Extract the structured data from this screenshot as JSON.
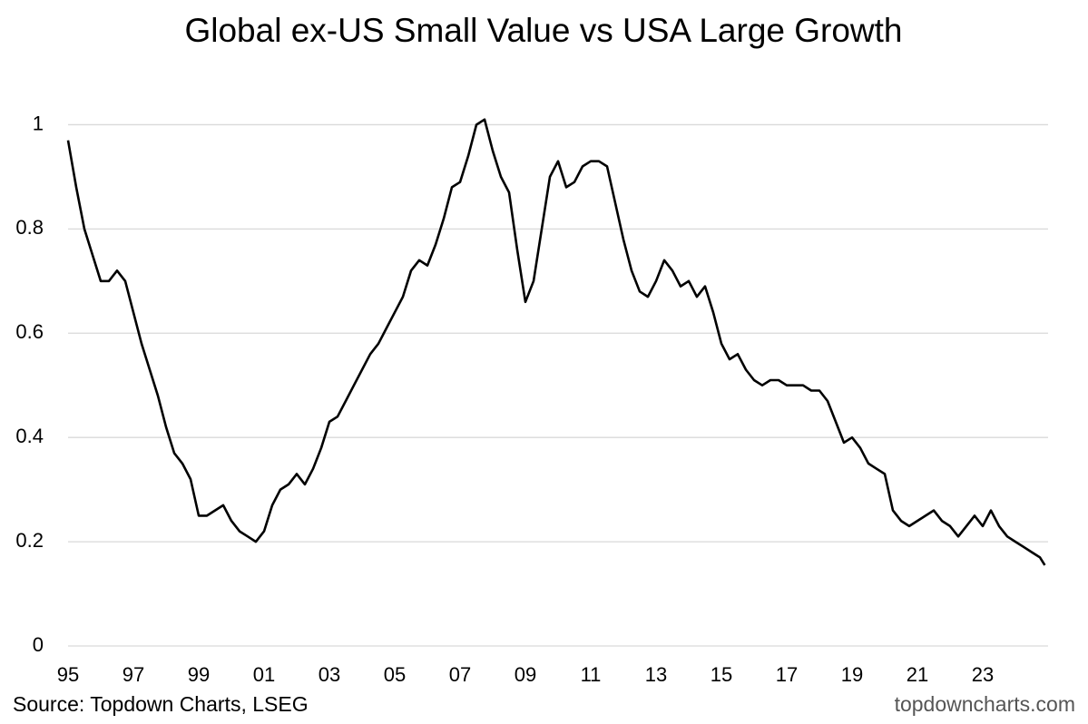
{
  "chart_data": {
    "type": "line",
    "title": "Global ex-US Small Value vs USA Large Growth",
    "annotations": {
      "source": "Source: Topdown Charts, LSEG",
      "watermark": "topdowncharts.com"
    },
    "x": [
      1995,
      1995.25,
      1995.5,
      1995.75,
      1996,
      1996.25,
      1996.5,
      1996.75,
      1997,
      1997.25,
      1997.5,
      1997.75,
      1998,
      1998.25,
      1998.5,
      1998.75,
      1999,
      1999.25,
      1999.5,
      1999.75,
      2000,
      2000.25,
      2000.5,
      2000.75,
      2001,
      2001.25,
      2001.5,
      2001.75,
      2002,
      2002.25,
      2002.5,
      2002.75,
      2003,
      2003.25,
      2003.5,
      2003.75,
      2004,
      2004.25,
      2004.5,
      2004.75,
      2005,
      2005.25,
      2005.5,
      2005.75,
      2006,
      2006.25,
      2006.5,
      2006.75,
      2007,
      2007.25,
      2007.5,
      2007.75,
      2008,
      2008.25,
      2008.5,
      2008.75,
      2009,
      2009.25,
      2009.5,
      2009.75,
      2010,
      2010.25,
      2010.5,
      2010.75,
      2011,
      2011.25,
      2011.5,
      2011.75,
      2012,
      2012.25,
      2012.5,
      2012.75,
      2013,
      2013.25,
      2013.5,
      2013.75,
      2014,
      2014.25,
      2014.5,
      2014.75,
      2015,
      2015.25,
      2015.5,
      2015.75,
      2016,
      2016.25,
      2016.5,
      2016.75,
      2017,
      2017.25,
      2017.5,
      2017.75,
      2018,
      2018.25,
      2018.5,
      2018.75,
      2019,
      2019.25,
      2019.5,
      2019.75,
      2020,
      2020.25,
      2020.5,
      2020.75,
      2021,
      2021.25,
      2021.5,
      2021.75,
      2022,
      2022.25,
      2022.5,
      2022.75,
      2023,
      2023.25,
      2023.5,
      2023.75,
      2024,
      2024.25,
      2024.5,
      2024.75,
      2024.9
    ],
    "series": [
      {
        "name": "Global ex-US Small Value vs USA Large Growth",
        "color": "#000000",
        "values": [
          0.97,
          0.88,
          0.8,
          0.75,
          0.7,
          0.7,
          0.72,
          0.7,
          0.64,
          0.58,
          0.53,
          0.48,
          0.42,
          0.37,
          0.35,
          0.32,
          0.25,
          0.25,
          0.26,
          0.27,
          0.24,
          0.22,
          0.21,
          0.2,
          0.22,
          0.27,
          0.3,
          0.31,
          0.33,
          0.31,
          0.34,
          0.38,
          0.43,
          0.44,
          0.47,
          0.5,
          0.53,
          0.56,
          0.58,
          0.61,
          0.64,
          0.67,
          0.72,
          0.74,
          0.73,
          0.77,
          0.82,
          0.88,
          0.89,
          0.94,
          1.0,
          1.01,
          0.95,
          0.9,
          0.87,
          0.76,
          0.66,
          0.7,
          0.8,
          0.9,
          0.93,
          0.88,
          0.89,
          0.92,
          0.93,
          0.93,
          0.92,
          0.85,
          0.78,
          0.72,
          0.68,
          0.67,
          0.7,
          0.74,
          0.72,
          0.69,
          0.7,
          0.67,
          0.69,
          0.64,
          0.58,
          0.55,
          0.56,
          0.53,
          0.51,
          0.5,
          0.51,
          0.51,
          0.5,
          0.5,
          0.5,
          0.49,
          0.49,
          0.47,
          0.43,
          0.39,
          0.4,
          0.38,
          0.35,
          0.34,
          0.33,
          0.26,
          0.24,
          0.23,
          0.24,
          0.25,
          0.26,
          0.24,
          0.23,
          0.21,
          0.23,
          0.25,
          0.23,
          0.26,
          0.23,
          0.21,
          0.2,
          0.19,
          0.18,
          0.17,
          0.155
        ]
      }
    ],
    "xlim": [
      1995,
      2025
    ],
    "xticks": [
      {
        "value": 1995,
        "label": "95"
      },
      {
        "value": 1997,
        "label": "97"
      },
      {
        "value": 1999,
        "label": "99"
      },
      {
        "value": 2001,
        "label": "01"
      },
      {
        "value": 2003,
        "label": "03"
      },
      {
        "value": 2005,
        "label": "05"
      },
      {
        "value": 2007,
        "label": "07"
      },
      {
        "value": 2009,
        "label": "09"
      },
      {
        "value": 2011,
        "label": "11"
      },
      {
        "value": 2013,
        "label": "13"
      },
      {
        "value": 2015,
        "label": "15"
      },
      {
        "value": 2017,
        "label": "17"
      },
      {
        "value": 2019,
        "label": "19"
      },
      {
        "value": 2021,
        "label": "21"
      },
      {
        "value": 2023,
        "label": "23"
      }
    ],
    "ylim": [
      0,
      1.1
    ],
    "yticks": [
      0,
      0.2,
      0.4,
      0.6,
      0.8,
      1
    ],
    "grid": true
  }
}
